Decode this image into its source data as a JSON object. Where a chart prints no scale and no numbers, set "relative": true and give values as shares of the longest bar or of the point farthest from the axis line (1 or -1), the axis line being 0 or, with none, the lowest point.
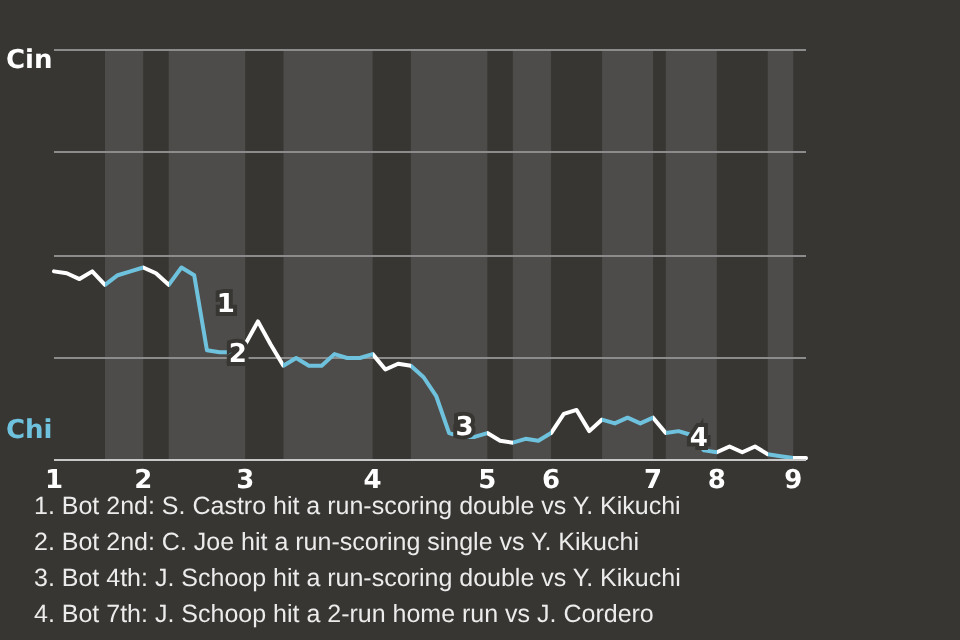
{
  "chart_data": {
    "type": "line",
    "relative": true,
    "categories": [
      "1",
      null,
      null,
      null,
      null,
      null,
      null,
      "2",
      null,
      null,
      null,
      null,
      null,
      null,
      null,
      "3",
      null,
      null,
      null,
      null,
      null,
      null,
      null,
      null,
      null,
      "4",
      null,
      null,
      null,
      null,
      null,
      null,
      null,
      null,
      "5",
      null,
      null,
      null,
      null,
      "6",
      null,
      null,
      null,
      null,
      null,
      null,
      null,
      "7",
      null,
      null,
      null,
      null,
      "8",
      null,
      null,
      null,
      null,
      null,
      "9",
      null
    ],
    "series": [
      {
        "color": "#ffffff",
        "values": [
          0.98,
          0.97,
          0.94,
          0.98,
          0.91,
          0.96,
          0.98,
          1,
          0.97,
          0.91,
          1,
          0.96,
          0.57,
          0.56,
          0.56,
          0.6,
          0.72,
          0.6,
          0.49,
          0.53,
          0.49,
          0.49,
          0.55,
          0.53,
          0.53,
          0.55,
          0.47,
          0.5,
          0.49,
          0.43,
          0.33,
          0.14,
          0.12,
          0.12,
          0.14,
          0.1,
          0.09,
          0.11,
          0.1,
          0.14,
          0.24,
          0.26,
          0.15,
          0.21,
          0.19,
          0.22,
          0.19,
          0.22,
          0.14,
          0.15,
          0.13,
          0.05,
          0.04,
          0.07,
          0.04,
          0.07,
          0.03,
          0.02,
          0.01,
          0.01
        ],
        "colors": [
          "#ffffff",
          "#ffffff",
          "#ffffff",
          "#ffffff",
          "#6fc2dd",
          "#6fc2dd",
          "#6fc2dd",
          "#ffffff",
          "#ffffff",
          "#6fc2dd",
          "#6fc2dd",
          "#6fc2dd",
          "#6fc2dd",
          "#6fc2dd",
          "#6fc2dd",
          "#ffffff",
          "#ffffff",
          "#ffffff",
          "#6fc2dd",
          "#6fc2dd",
          "#6fc2dd",
          "#6fc2dd",
          "#6fc2dd",
          "#6fc2dd",
          "#6fc2dd",
          "#ffffff",
          "#ffffff",
          "#ffffff",
          "#6fc2dd",
          "#6fc2dd",
          "#6fc2dd",
          "#6fc2dd",
          "#6fc2dd",
          "#6fc2dd",
          "#ffffff",
          "#ffffff",
          "#6fc2dd",
          "#6fc2dd",
          "#6fc2dd",
          "#ffffff",
          "#ffffff",
          "#ffffff",
          "#ffffff",
          "#6fc2dd",
          "#6fc2dd",
          "#6fc2dd",
          "#6fc2dd",
          "#ffffff",
          "#6fc2dd",
          "#6fc2dd",
          "#6fc2dd",
          "#6fc2dd",
          "#ffffff",
          "#ffffff",
          "#ffffff",
          "#ffffff",
          "#6fc2dd",
          "#6fc2dd",
          "#ffffff",
          "#ffffff"
        ]
      }
    ],
    "ref_lines": [
      {
        "axis": "y",
        "value": 0.53,
        "color": "#8c8c8c"
      },
      {
        "axis": "y",
        "value": 1.06,
        "color": "#8c8c8c"
      },
      {
        "axis": "y",
        "value": 1.6,
        "color": "#8c8c8c"
      },
      {
        "axis": "y",
        "value": 2.13,
        "color": "#8c8c8c"
      }
    ],
    "annotations": [
      "Cin",
      "Chi",
      "1",
      {
        "text": "2",
        "y": 0.56
      },
      {
        "text": "3",
        "y": 0.18
      },
      {
        "text": "4",
        "y": 0.04
      },
      "1. Bot 2nd: S. Castro hit a run-scoring double vs Y. Kikuchi",
      "2. Bot 2nd: C. Joe hit a run-scoring single vs Y. Kikuchi",
      "3. Bot 4th: J. Schoop hit a run-scoring double vs Y. Kikuchi",
      "4. Bot 7th: J. Schoop hit a 2-run home run vs J. Cordero"
    ]
  }
}
